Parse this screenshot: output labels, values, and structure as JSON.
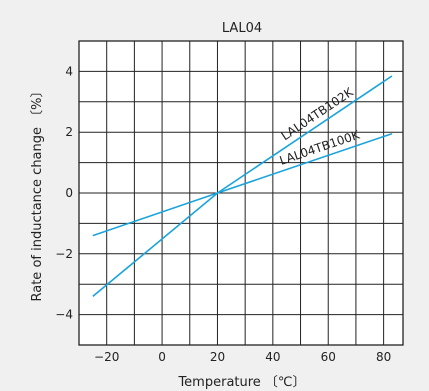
{
  "chart_data": {
    "type": "line",
    "title": "LAL04",
    "xlabel": "Temperature 〔℃〕",
    "ylabel": "Rate of inductance change 〔%〕",
    "xlim": [
      -30,
      87
    ],
    "ylim": [
      -5,
      5
    ],
    "x_ticks": [
      -20,
      0,
      20,
      40,
      60,
      80
    ],
    "x_tick_labels": [
      "−20",
      "0",
      "20",
      "40",
      "60",
      "80"
    ],
    "y_ticks": [
      -4,
      -2,
      0,
      2,
      4
    ],
    "y_tick_labels": [
      "−4",
      "−2",
      "0",
      "2",
      "4"
    ],
    "grid": true,
    "line_color": "#1aa3dc",
    "series": [
      {
        "name": "LAL04TB102K",
        "x": [
          -25,
          20,
          83
        ],
        "y": [
          -3.4,
          0,
          3.85
        ]
      },
      {
        "name": "LAL04TB100K",
        "x": [
          -25,
          20,
          83
        ],
        "y": [
          -1.4,
          0,
          1.95
        ]
      }
    ]
  }
}
